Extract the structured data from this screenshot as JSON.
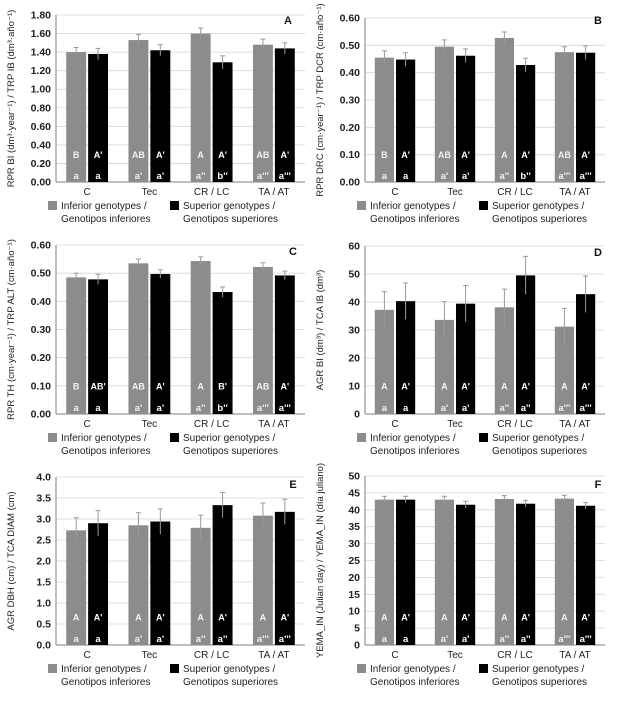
{
  "legend": {
    "inferior": "Inferior genotypes /",
    "inferior2": "Genotipos inferiores",
    "superior": "Superior genotypes /",
    "superior2": "Genotipos superiores"
  },
  "colors": {
    "inferior": "#8c8c8c",
    "superior": "#000000",
    "grid": "#d6d6d6",
    "axis": "#7f7f7f",
    "error": "#9a9a9a"
  },
  "chart_data": [
    {
      "panel": "A",
      "type": "bar",
      "ylabel": "RPR BI (dm³·year⁻¹) / TRP IB (dm³·año⁻¹)",
      "ylim": [
        0,
        1.8
      ],
      "yticks": [
        0.0,
        0.2,
        0.4,
        0.6,
        0.8,
        1.0,
        1.2,
        1.4,
        1.6,
        1.8
      ],
      "tickdec": 2,
      "categories": [
        "C",
        "Tec",
        "CR / LC",
        "TA / AT"
      ],
      "series": [
        {
          "name": "Inferior genotypes / Genotipos inferiores",
          "values": [
            1.4,
            1.53,
            1.6,
            1.48
          ],
          "errors": [
            0.05,
            0.06,
            0.06,
            0.06
          ]
        },
        {
          "name": "Superior genotypes / Genotipos superiores",
          "values": [
            1.38,
            1.42,
            1.29,
            1.44
          ],
          "errors": [
            0.06,
            0.06,
            0.07,
            0.06
          ]
        }
      ],
      "letters_upper": [
        [
          "B",
          "A'"
        ],
        [
          "AB",
          "A'"
        ],
        [
          "A",
          "A'"
        ],
        [
          "AB",
          "A'"
        ]
      ],
      "letters_lower": [
        [
          "a",
          "a"
        ],
        [
          "a'",
          "a'"
        ],
        [
          "a''",
          "b''"
        ],
        [
          "a'''",
          "a'''"
        ]
      ]
    },
    {
      "panel": "B",
      "type": "bar",
      "ylabel": "RPR DRC (cm·year⁻¹) / TRP DCR (cm·año⁻¹)",
      "ylim": [
        0,
        0.6
      ],
      "yticks": [
        0.0,
        0.1,
        0.2,
        0.3,
        0.4,
        0.5,
        0.6
      ],
      "tickdec": 2,
      "categories": [
        "C",
        "Tec",
        "CR / LC",
        "TA / AT"
      ],
      "series": [
        {
          "name": "Inferior genotypes / Genotipos inferiores",
          "values": [
            0.455,
            0.495,
            0.527,
            0.475
          ],
          "errors": [
            0.025,
            0.025,
            0.022,
            0.02
          ]
        },
        {
          "name": "Superior genotypes / Genotipos superiores",
          "values": [
            0.448,
            0.462,
            0.428,
            0.473
          ],
          "errors": [
            0.025,
            0.025,
            0.025,
            0.025
          ]
        }
      ],
      "letters_upper": [
        [
          "B",
          "A'"
        ],
        [
          "AB",
          "A'"
        ],
        [
          "A",
          "A'"
        ],
        [
          "AB",
          "A'"
        ]
      ],
      "letters_lower": [
        [
          "a",
          "a"
        ],
        [
          "a'",
          "a'"
        ],
        [
          "a''",
          "b''"
        ],
        [
          "a'''",
          "a'''"
        ]
      ]
    },
    {
      "panel": "C",
      "type": "bar",
      "ylabel": "RPR TH (cm·year⁻¹) / TRP ALT (cm·año⁻¹)",
      "ylim": [
        0,
        0.6
      ],
      "yticks": [
        0.0,
        0.1,
        0.2,
        0.3,
        0.4,
        0.5,
        0.6
      ],
      "tickdec": 2,
      "categories": [
        "C",
        "Tec",
        "CR / LC",
        "TA / AT"
      ],
      "series": [
        {
          "name": "Inferior genotypes / Genotipos inferiores",
          "values": [
            0.485,
            0.535,
            0.543,
            0.522
          ],
          "errors": [
            0.015,
            0.015,
            0.015,
            0.015
          ]
        },
        {
          "name": "Superior genotypes / Genotipos superiores",
          "values": [
            0.478,
            0.497,
            0.433,
            0.492
          ],
          "errors": [
            0.018,
            0.015,
            0.018,
            0.015
          ]
        }
      ],
      "letters_upper": [
        [
          "B",
          "AB'"
        ],
        [
          "AB",
          "A'"
        ],
        [
          "A",
          "B'"
        ],
        [
          "AB",
          "A'"
        ]
      ],
      "letters_lower": [
        [
          "a",
          "a"
        ],
        [
          "a'",
          "a'"
        ],
        [
          "a''",
          "b''"
        ],
        [
          "a'''",
          "a'''"
        ]
      ]
    },
    {
      "panel": "D",
      "type": "bar",
      "ylabel": "AGR BI (dm³) / TCA IB (dm³)",
      "ylim": [
        0,
        60
      ],
      "yticks": [
        0,
        10,
        20,
        30,
        40,
        50,
        60
      ],
      "tickdec": 0,
      "categories": [
        "C",
        "Tec",
        "CR / LC",
        "TA / AT"
      ],
      "series": [
        {
          "name": "Inferior genotypes / Genotipos inferiores",
          "values": [
            37.2,
            33.6,
            38.1,
            31.2
          ],
          "errors": [
            6.5,
            6.5,
            6.5,
            6.5
          ]
        },
        {
          "name": "Superior genotypes / Genotipos superiores",
          "values": [
            40.3,
            39.4,
            49.5,
            42.8
          ],
          "errors": [
            6.5,
            6.5,
            6.8,
            6.5
          ]
        }
      ],
      "letters_upper": [
        [
          "A",
          "A'"
        ],
        [
          "A",
          "A'"
        ],
        [
          "A",
          "A'"
        ],
        [
          "A",
          "A'"
        ]
      ],
      "letters_lower": [
        [
          "a",
          "a"
        ],
        [
          "a'",
          "a'"
        ],
        [
          "a''",
          "a''"
        ],
        [
          "a'''",
          "a'''"
        ]
      ]
    },
    {
      "panel": "E",
      "type": "bar",
      "ylabel": "AGR DBH (cm) / TCA DIAM (cm)",
      "ylim": [
        0,
        4.0
      ],
      "yticks": [
        0.0,
        0.5,
        1.0,
        1.5,
        2.0,
        2.5,
        3.0,
        3.5,
        4.0
      ],
      "tickdec": 1,
      "categories": [
        "C",
        "Tec",
        "CR / LC",
        "TA / AT"
      ],
      "series": [
        {
          "name": "Inferior genotypes / Genotipos inferiores",
          "values": [
            2.73,
            2.85,
            2.79,
            3.08
          ],
          "errors": [
            0.3,
            0.3,
            0.3,
            0.3
          ]
        },
        {
          "name": "Superior genotypes / Genotipos superiores",
          "values": [
            2.9,
            2.94,
            3.33,
            3.17
          ],
          "errors": [
            0.3,
            0.3,
            0.3,
            0.3
          ]
        }
      ],
      "letters_upper": [
        [
          "A",
          "A'"
        ],
        [
          "A",
          "A'"
        ],
        [
          "A",
          "A'"
        ],
        [
          "A",
          "A'"
        ]
      ],
      "letters_lower": [
        [
          "a",
          "a"
        ],
        [
          "a'",
          "a'"
        ],
        [
          "a''",
          "a''"
        ],
        [
          "a'''",
          "a'''"
        ]
      ]
    },
    {
      "panel": "F",
      "type": "bar",
      "ylabel": "YEMA_IN (Julian day) / YEMA_IN (día juliano)",
      "ylim": [
        0,
        50
      ],
      "yticks": [
        0,
        5,
        10,
        15,
        20,
        25,
        30,
        35,
        40,
        45,
        50
      ],
      "tickdec": 0,
      "categories": [
        "C",
        "Tec",
        "CR / LC",
        "TA / AT"
      ],
      "series": [
        {
          "name": "Inferior genotypes / Genotipos inferiores",
          "values": [
            43.0,
            43.0,
            43.2,
            43.3
          ],
          "errors": [
            1.0,
            1.0,
            1.0,
            1.0
          ]
        },
        {
          "name": "Superior genotypes / Genotipos superiores",
          "values": [
            43.0,
            41.5,
            41.8,
            41.2
          ],
          "errors": [
            1.0,
            1.0,
            1.0,
            1.0
          ]
        }
      ],
      "letters_upper": [
        [
          "A",
          "A'"
        ],
        [
          "A",
          "A'"
        ],
        [
          "A",
          "A'"
        ],
        [
          "A",
          "A'"
        ]
      ],
      "letters_lower": [
        [
          "a",
          "a"
        ],
        [
          "a'",
          "a'"
        ],
        [
          "a''",
          "a''"
        ],
        [
          "a'''",
          "a'''"
        ]
      ]
    }
  ]
}
